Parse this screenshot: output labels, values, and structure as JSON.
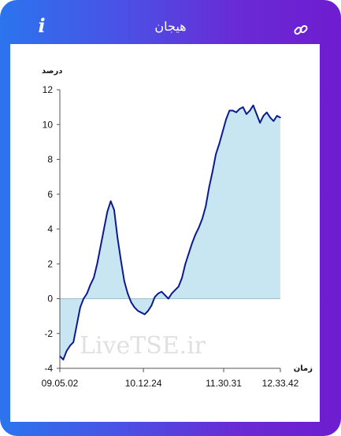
{
  "header": {
    "title": "هیجان",
    "info_icon": "info-icon",
    "link_icon": "link-icon"
  },
  "colors": {
    "gradient_start": "#2b74ee",
    "gradient_end": "#6e1dcf",
    "line": "#0b1a8f",
    "fill": "#c8e6f2"
  },
  "watermark": "LiveTSE.ir",
  "chart_data": {
    "type": "area",
    "ylabel": "درصد",
    "xlabel": "زمان",
    "ylim": [
      -4,
      12
    ],
    "yticks": [
      -4,
      -2,
      0,
      2,
      4,
      6,
      8,
      10,
      12
    ],
    "xticks": [
      "09.05.02",
      "10.12.24",
      "11.30.31",
      "12.33.42"
    ],
    "grid": false,
    "series": [
      {
        "values": [
          -3.3,
          -3.5,
          -3.0,
          -2.7,
          -2.5,
          -1.5,
          -0.5,
          0.0,
          0.3,
          0.8,
          1.2,
          2.0,
          3.0,
          4.0,
          5.0,
          5.6,
          5.1,
          3.5,
          2.2,
          1.0,
          0.3,
          -0.2,
          -0.5,
          -0.7,
          -0.8,
          -0.9,
          -0.7,
          -0.4,
          0.1,
          0.3,
          0.4,
          0.2,
          0.0,
          0.3,
          0.5,
          0.7,
          1.2,
          2.0,
          2.6,
          3.2,
          3.7,
          4.1,
          4.6,
          5.3,
          6.4,
          7.3,
          8.3,
          8.9,
          9.6,
          10.3,
          10.8,
          10.8,
          10.7,
          10.9,
          11.0,
          10.6,
          10.8,
          11.1,
          10.6,
          10.1,
          10.5,
          10.7,
          10.4,
          10.2,
          10.5,
          10.4
        ]
      }
    ]
  }
}
